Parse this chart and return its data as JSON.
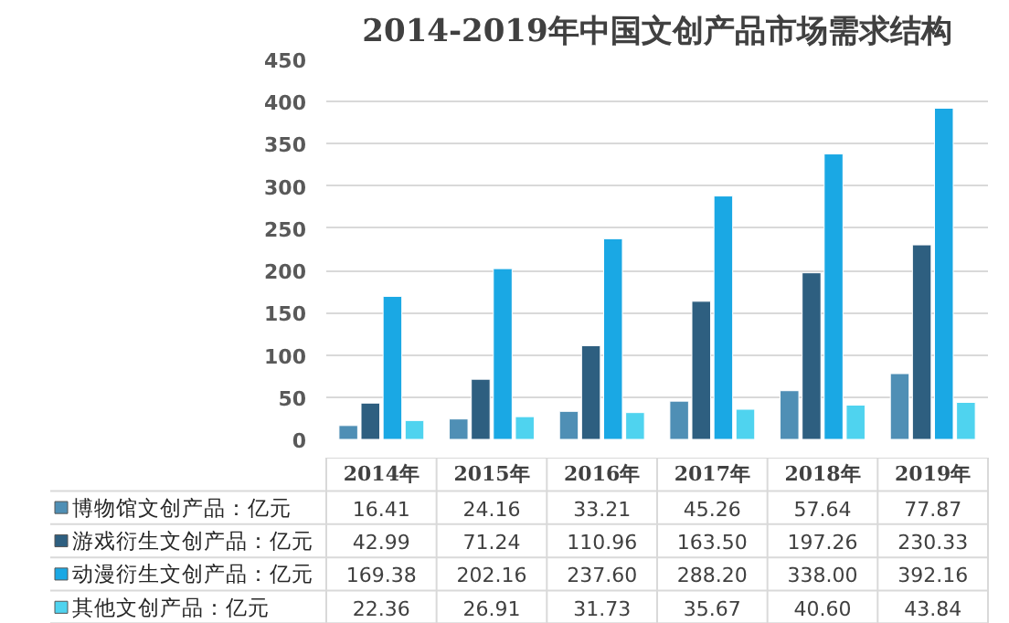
{
  "chart_data": {
    "type": "bar",
    "title": "2014-2019年中国文创产品市场需求结构",
    "categories": [
      "2014年",
      "2015年",
      "2016年",
      "2017年",
      "2018年",
      "2019年"
    ],
    "series": [
      {
        "name": "博物馆文创产品：亿元",
        "color": "#4f8fb5",
        "values": [
          16.41,
          24.16,
          33.21,
          45.26,
          57.64,
          77.87
        ],
        "value_labels": [
          "16.41",
          "24.16",
          "33.21",
          "45.26",
          "57.64",
          "77.87"
        ]
      },
      {
        "name": "游戏衍生文创产品：亿元",
        "color": "#2e5f80",
        "values": [
          42.99,
          71.24,
          110.96,
          163.5,
          197.26,
          230.33
        ],
        "value_labels": [
          "42.99",
          "71.24",
          "110.96",
          "163.50",
          "197.26",
          "230.33"
        ]
      },
      {
        "name": "动漫衍生文创产品：亿元",
        "color": "#1aa8e4",
        "values": [
          169.38,
          202.16,
          237.6,
          288.2,
          338.0,
          392.16
        ],
        "value_labels": [
          "169.38",
          "202.16",
          "237.60",
          "288.20",
          "338.00",
          "392.16"
        ]
      },
      {
        "name": "其他文创产品：亿元",
        "color": "#4fd3ef",
        "values": [
          22.36,
          26.91,
          31.73,
          35.67,
          40.6,
          43.84
        ],
        "value_labels": [
          "22.36",
          "26.91",
          "31.73",
          "35.67",
          "40.60",
          "43.84"
        ]
      }
    ],
    "ylim": [
      0,
      450
    ],
    "yticks": [
      0,
      50,
      100,
      150,
      200,
      250,
      300,
      350,
      400,
      450
    ],
    "grid": "y",
    "legend": "bottom"
  }
}
